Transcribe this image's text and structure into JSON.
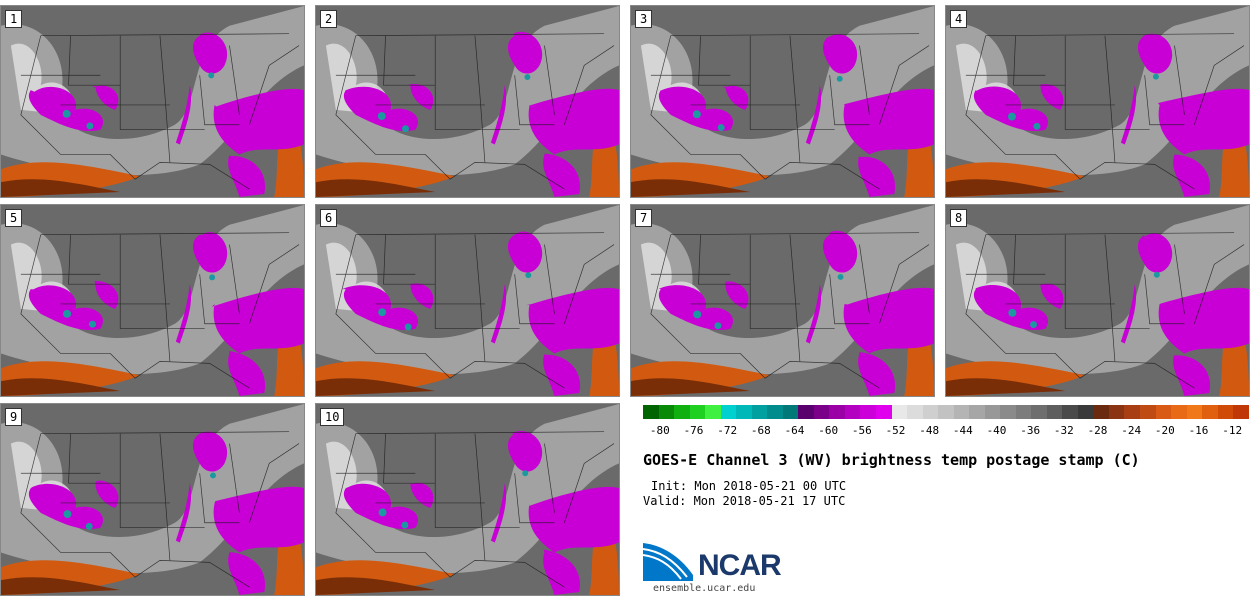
{
  "panels": [
    {
      "label": "1"
    },
    {
      "label": "2"
    },
    {
      "label": "3"
    },
    {
      "label": "4"
    },
    {
      "label": "5"
    },
    {
      "label": "6"
    },
    {
      "label": "7"
    },
    {
      "label": "8"
    },
    {
      "label": "9"
    },
    {
      "label": "10"
    }
  ],
  "colorbar": {
    "tick_labels": [
      "-80",
      "-76",
      "-72",
      "-68",
      "-64",
      "-60",
      "-56",
      "-52",
      "-48",
      "-44",
      "-40",
      "-36",
      "-32",
      "-28",
      "-24",
      "-20",
      "-16",
      "-12"
    ],
    "colors": [
      "#006400",
      "#088a08",
      "#10b010",
      "#20d020",
      "#40f040",
      "#00d0d0",
      "#00b8b8",
      "#00a0a0",
      "#008c8c",
      "#007878",
      "#5a006e",
      "#7a008a",
      "#9a00a6",
      "#b400c0",
      "#cc00d8",
      "#e000ee",
      "#e8e8e8",
      "#dcdcdc",
      "#cfcfcf",
      "#c2c2c2",
      "#b4b4b4",
      "#a6a6a6",
      "#989898",
      "#8a8a8a",
      "#7c7c7c",
      "#6e6e6e",
      "#5e5e5e",
      "#4a4a4a",
      "#3a3a3a",
      "#6a2a10",
      "#8a3414",
      "#a83e14",
      "#c04a14",
      "#d85a14",
      "#e86a16",
      "#f07818",
      "#e06010",
      "#d04a08",
      "#c03808"
    ]
  },
  "title": "GOES-E Channel 3 (WV) brightness temp postage stamp (C)",
  "init_line": "Init: Mon 2018-05-21 00 UTC",
  "valid_line": "Valid: Mon 2018-05-21 17 UTC",
  "logo": {
    "name": "NCAR",
    "url": "ensemble.ucar.edu",
    "color": "#1b3a6b",
    "swoosh_color": "#0077c8"
  },
  "map_colors": {
    "background": "#6a6a6a",
    "cloud_gray": "#b5b5b5",
    "bright": "#e2e2e2",
    "magenta": "#c800d6",
    "dark_magenta": "#8a0096",
    "teal": "#1a9aa0",
    "orange": "#d25a10",
    "dark_orange": "#7a2e08",
    "borders": "#1a1a1a"
  }
}
